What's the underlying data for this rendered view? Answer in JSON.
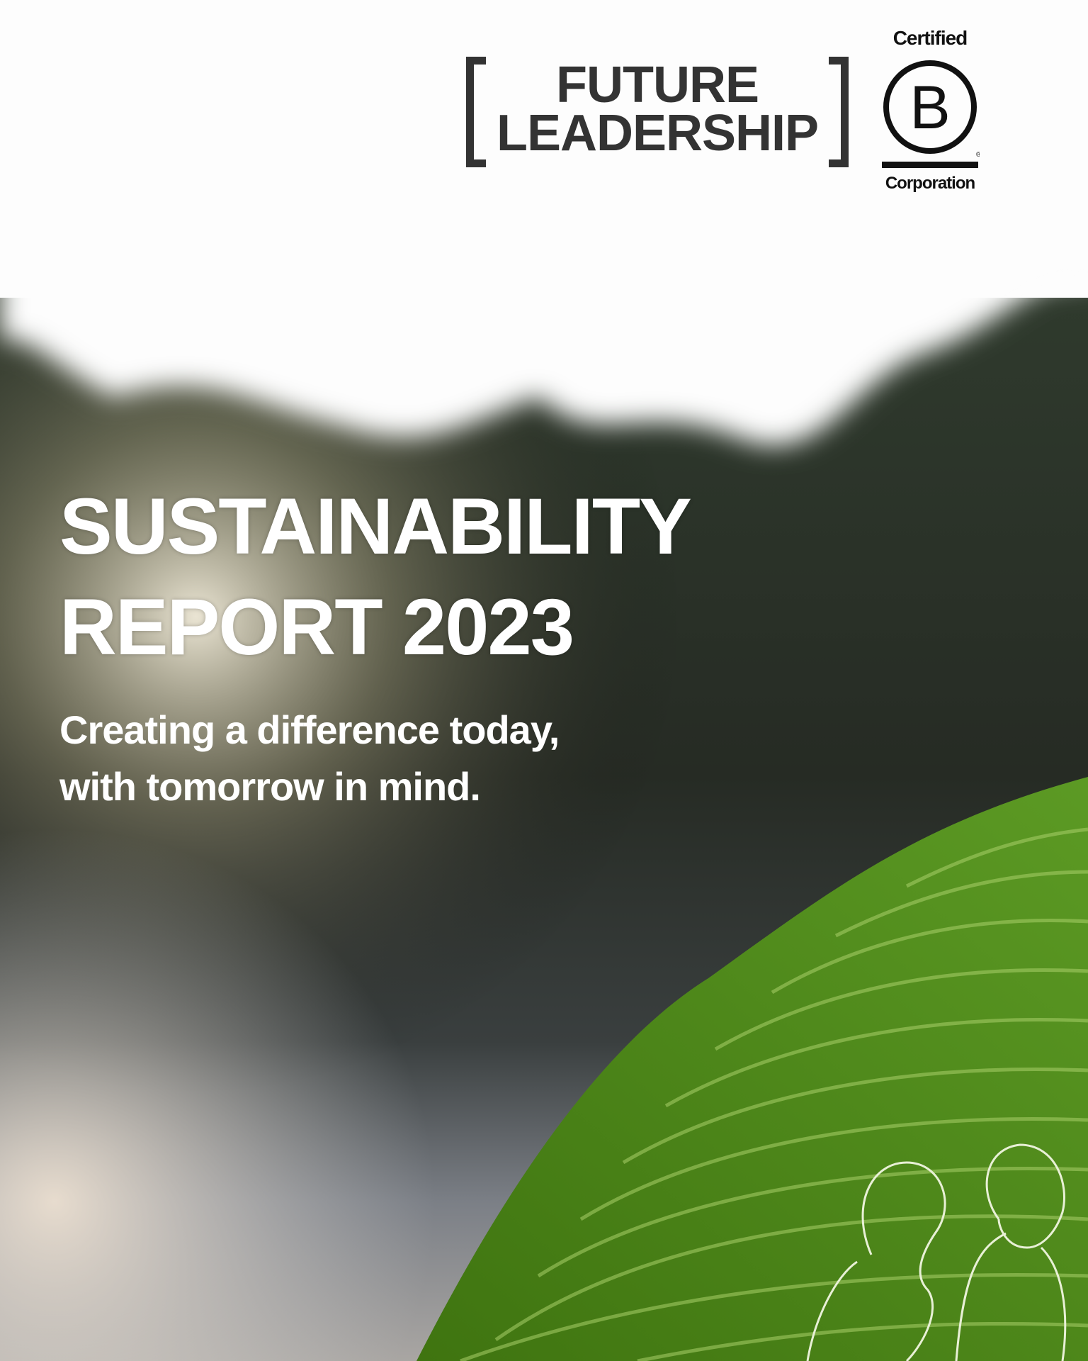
{
  "logo": {
    "line1": "FUTURE",
    "line2": "LEADERSHIP"
  },
  "certification": {
    "top": "Certified",
    "letter": "B",
    "bottom": "Corporation"
  },
  "cover": {
    "title_line1": "SUSTAINABILITY",
    "title_line2": "REPORT 2023",
    "subtitle_line1": "Creating a difference today,",
    "subtitle_line2": "with tomorrow in mind."
  },
  "colors": {
    "leaf": "#4f8a1c",
    "dark_bg": "#2b3028",
    "logo_text": "#333333"
  }
}
